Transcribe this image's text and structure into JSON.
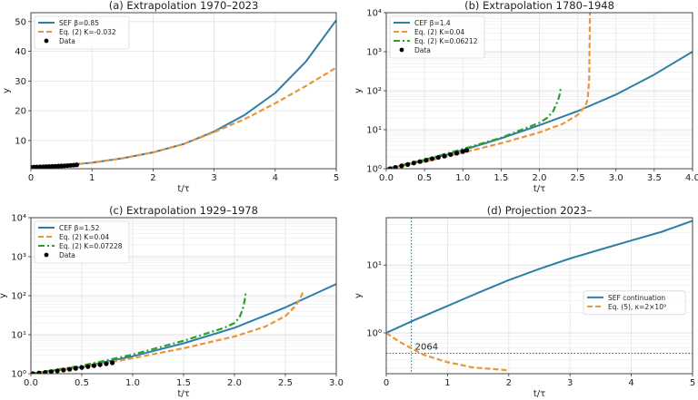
{
  "colors": {
    "sef": "#2e7ea6",
    "eq2": "#e9963a",
    "eq2b": "#2ca02c",
    "data": "#000000",
    "grid": "#e3e3e3",
    "ref": "#2e6e78"
  },
  "chart_data": [
    {
      "type": "line",
      "title": "(a) Extrapolation 1970–2023",
      "xlabel": "t/τ",
      "ylabel": "y",
      "xlim": [
        0,
        5
      ],
      "ylim": [
        0.5,
        53
      ],
      "yscale": "linear",
      "xticks": [
        "0",
        "1",
        "2",
        "3",
        "4",
        "5"
      ],
      "xtick_values": [
        0,
        1,
        2,
        3,
        4,
        5
      ],
      "yticks": [
        "10",
        "20",
        "30",
        "40",
        "50"
      ],
      "ytick_values": [
        10,
        20,
        30,
        40,
        50
      ],
      "legend_position": "top-left",
      "series": [
        {
          "name": "SEF β=0.85",
          "style": "solid",
          "color": "sef",
          "x": [
            0,
            0.5,
            1,
            1.5,
            2,
            2.5,
            3,
            3.5,
            4,
            4.5,
            5
          ],
          "y": [
            1,
            1.6,
            2.5,
            4,
            6,
            8.8,
            13,
            18.6,
            26,
            36.5,
            50.5
          ]
        },
        {
          "name": "Eq. (2)  K=-0.032",
          "style": "dashed",
          "color": "eq2",
          "x": [
            0,
            0.5,
            1,
            1.5,
            2,
            2.5,
            3,
            3.5,
            4,
            4.5,
            5
          ],
          "y": [
            1,
            1.6,
            2.5,
            4,
            6,
            8.8,
            12.8,
            17.2,
            22.5,
            28.3,
            34.5
          ]
        },
        {
          "name": "Data",
          "style": "points",
          "color": "data",
          "x": [
            0,
            0.05,
            0.1,
            0.15,
            0.2,
            0.25,
            0.3,
            0.35,
            0.4,
            0.45,
            0.5,
            0.55,
            0.6,
            0.65,
            0.7,
            0.75
          ],
          "y": [
            1,
            1.03,
            1.07,
            1.1,
            1.14,
            1.18,
            1.22,
            1.27,
            1.32,
            1.37,
            1.42,
            1.48,
            1.55,
            1.62,
            1.7,
            1.8
          ]
        }
      ]
    },
    {
      "type": "line",
      "title": "(b) Extrapolation 1780–1948",
      "xlabel": "t/τ",
      "ylabel": "y",
      "xlim": [
        0,
        4
      ],
      "ylim": [
        1,
        10000
      ],
      "yscale": "log",
      "xticks": [
        "0.0",
        "0.5",
        "1.0",
        "1.5",
        "2.0",
        "2.5",
        "3.0",
        "3.5",
        "4.0"
      ],
      "xtick_values": [
        0,
        0.5,
        1,
        1.5,
        2,
        2.5,
        3,
        3.5,
        4
      ],
      "yticks": [
        "10⁰",
        "10¹",
        "10²",
        "10³",
        "10⁴"
      ],
      "ytick_values": [
        1,
        10,
        100,
        1000,
        10000
      ],
      "legend_position": "top-left",
      "series": [
        {
          "name": "CEF β=1.4",
          "style": "solid",
          "color": "sef",
          "x": [
            0,
            0.5,
            1,
            1.5,
            2,
            2.5,
            3,
            3.5,
            4
          ],
          "y": [
            1,
            1.6,
            3,
            6,
            13,
            30,
            80,
            260,
            1000
          ]
        },
        {
          "name": "Eq. (2)  K=0.04",
          "style": "dashed",
          "color": "eq2",
          "x": [
            0,
            0.5,
            1,
            1.5,
            2,
            2.3,
            2.5,
            2.6,
            2.63,
            2.65,
            2.66
          ],
          "y": [
            1,
            1.5,
            2.6,
            4.5,
            8.5,
            14,
            24,
            40,
            60,
            200,
            10000
          ]
        },
        {
          "name": "Eq. (2)  K=0.06212",
          "style": "dashdot",
          "color": "eq2b",
          "x": [
            0,
            0.5,
            1,
            1.5,
            2,
            2.1,
            2.18,
            2.24,
            2.27,
            2.28
          ],
          "y": [
            1,
            1.7,
            3.2,
            6.2,
            15,
            20,
            30,
            55,
            85,
            120
          ]
        },
        {
          "name": "Data",
          "style": "points",
          "color": "data",
          "x": [
            0.05,
            0.12,
            0.2,
            0.28,
            0.36,
            0.44,
            0.52,
            0.6,
            0.68,
            0.76,
            0.84,
            0.92,
            1.0,
            1.05
          ],
          "y": [
            1,
            1.08,
            1.18,
            1.28,
            1.4,
            1.52,
            1.65,
            1.8,
            1.95,
            2.1,
            2.3,
            2.5,
            2.75,
            2.95
          ]
        }
      ]
    },
    {
      "type": "line",
      "title": "(c) Extrapolation 1929–1978",
      "xlabel": "t/τ",
      "ylabel": "y",
      "xlim": [
        0,
        3
      ],
      "ylim": [
        1,
        10000
      ],
      "yscale": "log",
      "xticks": [
        "0.0",
        "0.5",
        "1.0",
        "1.5",
        "2.0",
        "2.5",
        "3.0"
      ],
      "xtick_values": [
        0,
        0.5,
        1,
        1.5,
        2,
        2.5,
        3
      ],
      "yticks": [
        "10⁰",
        "10¹",
        "10²",
        "10³",
        "10⁴"
      ],
      "ytick_values": [
        1,
        10,
        100,
        1000,
        10000
      ],
      "legend_position": "top-left",
      "series": [
        {
          "name": "CEF β=1.52",
          "style": "solid",
          "color": "sef",
          "x": [
            0,
            0.5,
            1,
            1.5,
            2,
            2.5,
            3
          ],
          "y": [
            1,
            1.5,
            2.8,
            6,
            15,
            50,
            200
          ]
        },
        {
          "name": "Eq. (2)  K=0.04",
          "style": "dashed",
          "color": "eq2",
          "x": [
            0,
            0.5,
            1,
            1.5,
            2,
            2.3,
            2.5,
            2.6,
            2.65,
            2.68
          ],
          "y": [
            1,
            1.45,
            2.5,
            4.5,
            9,
            16,
            30,
            55,
            90,
            140
          ]
        },
        {
          "name": "Eq. (2)  K=0.07228",
          "style": "dashdot",
          "color": "eq2b",
          "x": [
            0,
            0.5,
            1,
            1.5,
            1.9,
            2.0,
            2.05,
            2.08,
            2.1,
            2.11
          ],
          "y": [
            1,
            1.6,
            3.1,
            7,
            15,
            20,
            28,
            45,
            75,
            120
          ]
        },
        {
          "name": "Data",
          "style": "points",
          "color": "data",
          "x": [
            0.02,
            0.08,
            0.14,
            0.2,
            0.26,
            0.32,
            0.38,
            0.44,
            0.5,
            0.56,
            0.62,
            0.68,
            0.74,
            0.8
          ],
          "y": [
            1,
            1.04,
            1.08,
            1.13,
            1.18,
            1.24,
            1.3,
            1.37,
            1.44,
            1.52,
            1.6,
            1.7,
            1.8,
            1.9
          ]
        }
      ]
    },
    {
      "type": "line",
      "title": "(d) Projection 2023–",
      "xlabel": "t/τ",
      "ylabel": "y",
      "xlim": [
        0,
        5
      ],
      "ylim": [
        0.25,
        50
      ],
      "yscale": "log",
      "xticks": [
        "0",
        "1",
        "2",
        "3",
        "4",
        "5"
      ],
      "xtick_values": [
        0,
        1,
        2,
        3,
        4,
        5
      ],
      "yticks": [
        "10⁰",
        "10¹"
      ],
      "ytick_values": [
        1,
        10
      ],
      "legend_position": "center-right",
      "annotation": "2064",
      "annotation_x": 0.41,
      "annotation_y": 0.5,
      "series": [
        {
          "name": "SEF continuation",
          "style": "solid",
          "color": "sef",
          "x": [
            0,
            0.5,
            1,
            1.5,
            2,
            2.5,
            3,
            3.5,
            4,
            4.5,
            5
          ],
          "y": [
            1,
            1.6,
            2.5,
            3.9,
            6,
            8.8,
            12.5,
            17,
            23,
            31,
            45
          ]
        },
        {
          "name": "Eq. (5), κ=2×10⁹",
          "style": "dashed",
          "color": "eq2",
          "x": [
            0,
            0.2,
            0.4,
            0.6,
            0.8,
            1.0,
            1.2,
            1.4,
            1.6,
            1.8,
            2.0
          ],
          "y": [
            1,
            0.75,
            0.6,
            0.48,
            0.42,
            0.37,
            0.34,
            0.31,
            0.3,
            0.29,
            0.28
          ]
        }
      ]
    }
  ]
}
